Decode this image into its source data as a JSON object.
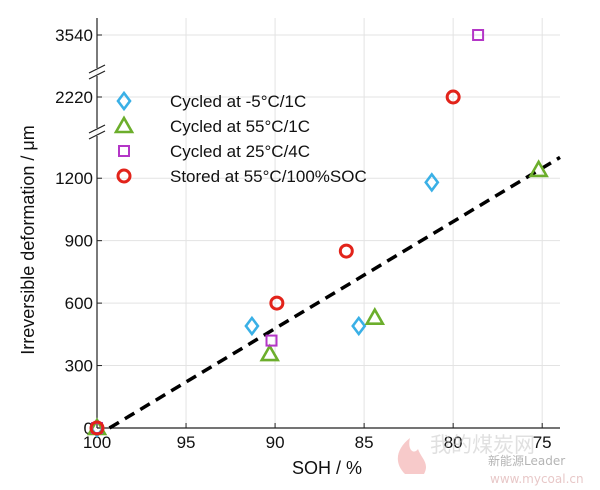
{
  "chart_data": {
    "type": "scatter",
    "xlabel": "SOH / %",
    "ylabel": "Irreversible deformation / μm",
    "xlim": [
      100,
      74
    ],
    "x_reversed": true,
    "x_ticks": [
      "100",
      "95",
      "90",
      "85",
      "80",
      "75"
    ],
    "y_ticks_lower": [
      "0",
      "300",
      "600",
      "900",
      "1200"
    ],
    "y_ticks_broken": [
      "2220",
      "3540"
    ],
    "ylim_lower": [
      0,
      1350
    ],
    "axis_breaks": true,
    "grid": true,
    "legend_position": "top-left",
    "series": [
      {
        "name": "Cycled at -5°C/1C",
        "marker": "diamond",
        "color": "#3ab0e6",
        "points": [
          [
            100,
            0
          ],
          [
            91.3,
            490
          ],
          [
            85.3,
            490
          ],
          [
            81.2,
            1180
          ]
        ]
      },
      {
        "name": "Cycled at 55°C/1C",
        "marker": "triangle",
        "color": "#6cae2c",
        "points": [
          [
            100,
            0
          ],
          [
            90.3,
            355
          ],
          [
            84.4,
            530
          ],
          [
            75.2,
            1240
          ]
        ]
      },
      {
        "name": "Cycled at 25°C/4C",
        "marker": "square",
        "color": "#b436c7",
        "points": [
          [
            100,
            0
          ],
          [
            90.2,
            420
          ],
          [
            78.6,
            3540
          ]
        ]
      },
      {
        "name": "Stored at 55°C/100%SOC",
        "marker": "circle",
        "color": "#e2231a",
        "points": [
          [
            100,
            0
          ],
          [
            89.9,
            600
          ],
          [
            86.0,
            850
          ],
          [
            80.0,
            2220
          ]
        ]
      }
    ],
    "trendline": {
      "style": "dashed",
      "color": "#000000",
      "points": [
        [
          99.3,
          0
        ],
        [
          74,
          1300
        ]
      ]
    }
  },
  "watermark": {
    "site_cn": "我的煤炭网",
    "site_url": "www.mycoal.cn",
    "brand": "新能源Leader"
  }
}
